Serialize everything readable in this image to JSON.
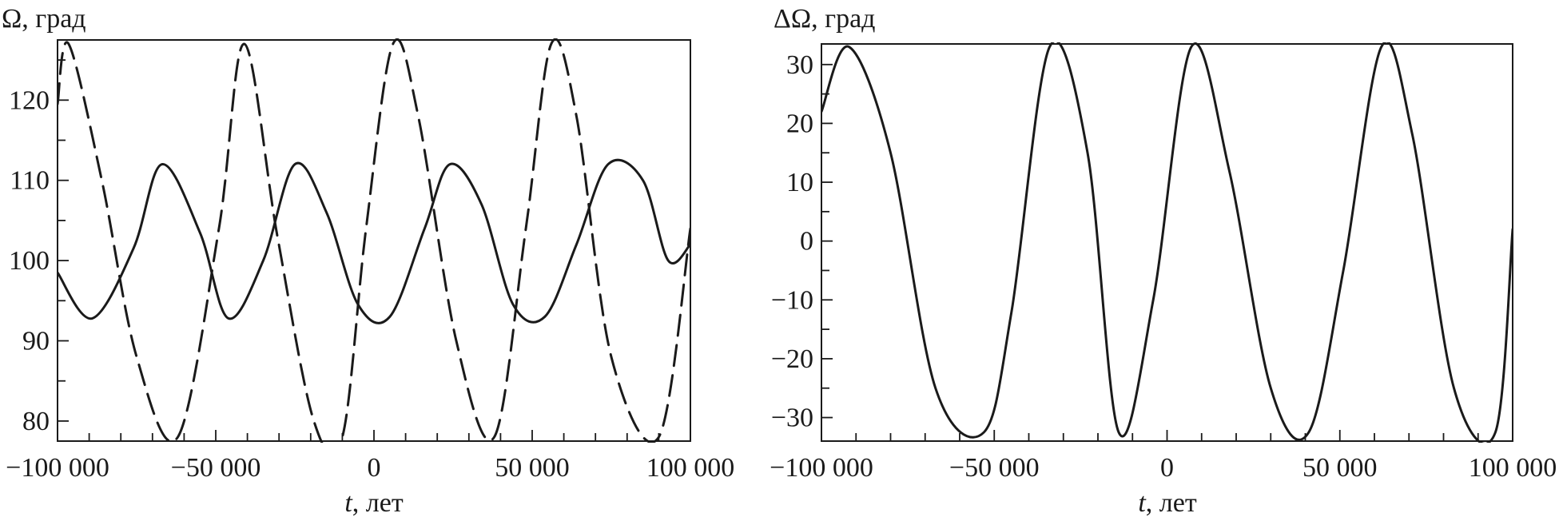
{
  "chart_data": [
    {
      "type": "line",
      "ylabel": "Ω, град",
      "xlabel_italic": "t",
      "xlabel_rest": ", лет",
      "xlim": [
        -100000,
        100000
      ],
      "ylim": [
        77.5,
        127.5
      ],
      "x_ticks": [
        -100000,
        -50000,
        0,
        50000,
        100000
      ],
      "x_tick_labels": [
        "−100 000",
        "−50 000",
        "0",
        "50 000",
        "100 000"
      ],
      "y_ticks": [
        80,
        90,
        100,
        110,
        120
      ],
      "y_tick_labels": [
        "80",
        "90",
        "100",
        "110",
        "120"
      ],
      "grid": false,
      "color": "#1a1a1a",
      "series": [
        {
          "style": "solid",
          "x": [
            -100000,
            -89000,
            -76000,
            -67000,
            -55000,
            -46000,
            -35000,
            -25000,
            -15000,
            -5000,
            5000,
            16000,
            24000,
            34000,
            44000,
            54000,
            64000,
            74000,
            85000,
            93000,
            100000
          ],
          "y": [
            98.5,
            92.8,
            101.5,
            112,
            103.5,
            92.8,
            100,
            112,
            106,
            94.5,
            93,
            104,
            112,
            107,
            94.5,
            93,
            102,
            112,
            110,
            100,
            102
          ]
        },
        {
          "style": "dashed",
          "x": [
            -100000,
            -96500,
            -86000,
            -75000,
            -62000,
            -49000,
            -41000,
            -30500,
            -19000,
            -10000,
            -2500,
            6000,
            14000,
            26000,
            38000,
            48000,
            56000,
            64000,
            75000,
            90000,
            100000
          ],
          "y": [
            119.5,
            127,
            110,
            88,
            78,
            104,
            127,
            103,
            80,
            78,
            104,
            127,
            118,
            90,
            78,
            104,
            127,
            118,
            88,
            78,
            104
          ]
        }
      ]
    },
    {
      "type": "line",
      "ylabel": "ΔΩ, град",
      "xlabel_italic": "t",
      "xlabel_rest": ", лет",
      "xlim": [
        -100000,
        100000
      ],
      "ylim": [
        -34,
        33.5
      ],
      "x_ticks": [
        -100000,
        -50000,
        0,
        50000,
        100000
      ],
      "x_tick_labels": [
        "−100 000",
        "−50 000",
        "0",
        "50 000",
        "100 000"
      ],
      "y_ticks": [
        -30,
        -20,
        -10,
        0,
        10,
        20,
        30
      ],
      "y_tick_labels": [
        "−30",
        "−20",
        "−10",
        "0",
        "10",
        "20",
        "30"
      ],
      "grid": false,
      "color": "#1a1a1a",
      "series": [
        {
          "style": "solid",
          "x": [
            -100000,
            -92000,
            -80000,
            -67000,
            -53000,
            -45000,
            -34000,
            -23000,
            -14000,
            -4000,
            7000,
            18000,
            30000,
            41000,
            51000,
            62000,
            71000,
            83000,
            95000,
            100000
          ],
          "y": [
            22,
            33,
            15,
            -25,
            -32.5,
            -12,
            33,
            15,
            -32.5,
            -10,
            33,
            12,
            -25,
            -32.5,
            -5,
            33,
            18,
            -25,
            -32.5,
            2
          ]
        }
      ]
    }
  ]
}
